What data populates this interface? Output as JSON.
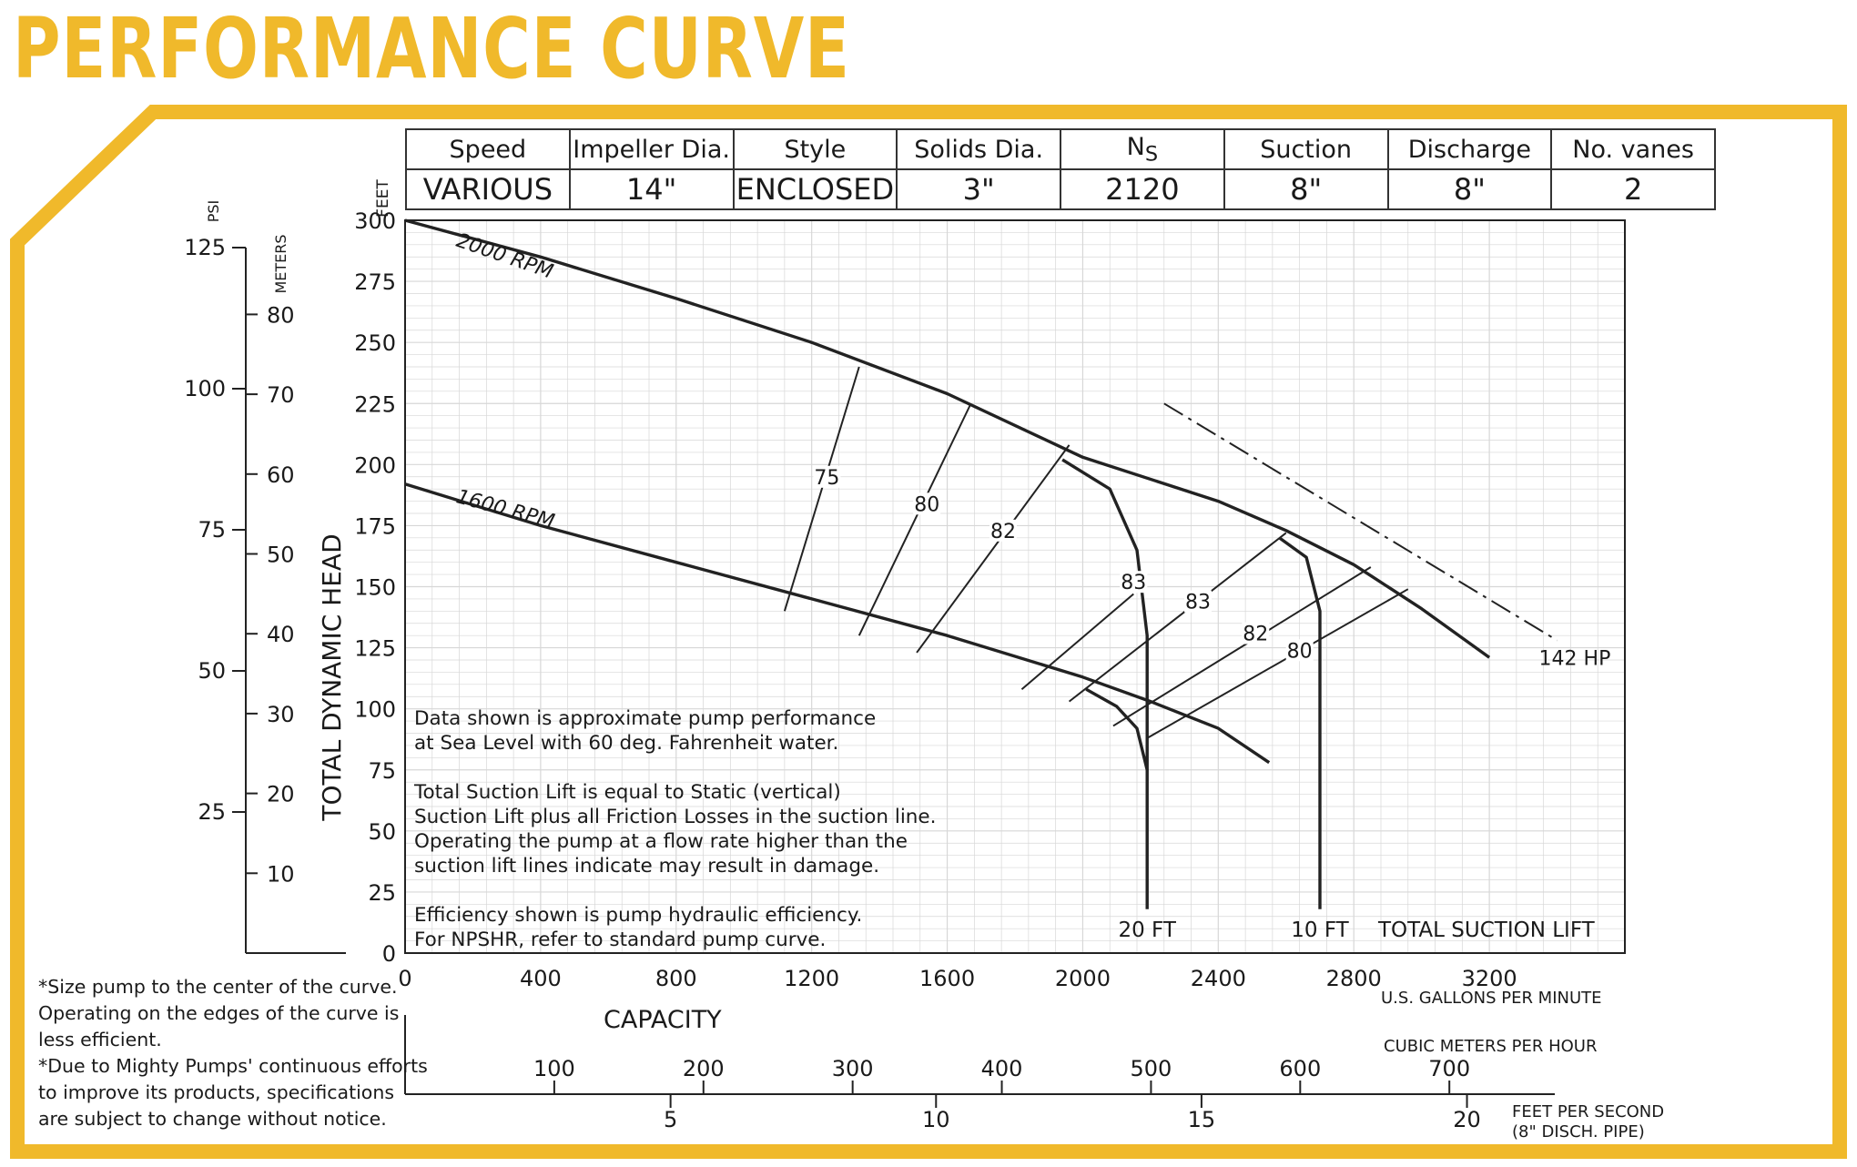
{
  "title": "PERFORMANCE CURVE",
  "colors": {
    "accent": "#f0b92b",
    "ink": "#222222",
    "grid": "#d7d7d7"
  },
  "specs": {
    "headers": [
      "Speed",
      "Impeller Dia.",
      "Style",
      "Solids Dia.",
      "N",
      "Suction",
      "Discharge",
      "No. vanes"
    ],
    "ns_subscript": "S",
    "values": [
      "VARIOUS",
      "14\"",
      "ENCLOSED",
      "3\"",
      "2120",
      "8\"",
      "8\"",
      "2"
    ]
  },
  "notes": {
    "approx": [
      "Data shown is approximate pump performance",
      "at Sea Level with 60 deg. Fahrenheit water."
    ],
    "suction": [
      "Total Suction Lift is equal to Static (vertical)",
      "Suction Lift plus all Friction Losses in the suction line.",
      "Operating the pump at a flow rate higher than the",
      "suction lift lines indicate may result in damage."
    ],
    "efficiency": [
      "Efficiency shown is pump hydraulic efficiency.",
      "For NPSHR, refer to standard pump curve."
    ]
  },
  "footnotes": [
    "*Size pump to the center of the curve.",
    "Operating on the edges of the curve is",
    "less efficient.",
    "*Due to Mighty Pumps' continuous efforts",
    "to improve its products, specifications",
    "are subject to change without notice."
  ],
  "chart_data": {
    "type": "line",
    "title": "",
    "xlabel": "CAPACITY",
    "ylabel": "TOTAL DYNAMIC HEAD",
    "x_unit": "U.S. GALLONS PER MINUTE",
    "y_unit": "FEET",
    "xlim": [
      0,
      3600
    ],
    "ylim": [
      0,
      300
    ],
    "x_ticks": [
      0,
      400,
      800,
      1200,
      1600,
      2000,
      2400,
      2800,
      3200
    ],
    "y_ticks": [
      0,
      25,
      50,
      75,
      100,
      125,
      150,
      175,
      200,
      225,
      250,
      275,
      300
    ],
    "grid": true,
    "secondary_axes": {
      "psi": {
        "label": "PSI",
        "ticks": [
          25,
          50,
          75,
          100,
          125
        ]
      },
      "meters": {
        "label": "METERS",
        "ticks": [
          10,
          20,
          30,
          40,
          50,
          60,
          70,
          80
        ]
      },
      "cubic_meters_per_hour": {
        "label": "CUBIC METERS PER HOUR",
        "ticks": [
          100,
          200,
          300,
          400,
          500,
          600,
          700
        ]
      },
      "feet_per_second": {
        "label": "FEET PER SECOND",
        "sublabel": "(8\" DISCH. PIPE)",
        "ticks": [
          5,
          10,
          15,
          20
        ]
      }
    },
    "series": [
      {
        "name": "2000 RPM",
        "points": [
          [
            0,
            300
          ],
          [
            400,
            285
          ],
          [
            800,
            268
          ],
          [
            1200,
            250
          ],
          [
            1600,
            229
          ],
          [
            2000,
            203
          ],
          [
            2400,
            185
          ],
          [
            2600,
            173
          ],
          [
            2800,
            159
          ],
          [
            3000,
            141
          ],
          [
            3200,
            121
          ]
        ]
      },
      {
        "name": "1600 RPM",
        "points": [
          [
            0,
            192
          ],
          [
            400,
            175
          ],
          [
            800,
            160
          ],
          [
            1200,
            145
          ],
          [
            1600,
            130
          ],
          [
            2000,
            113
          ],
          [
            2200,
            103
          ],
          [
            2400,
            92
          ],
          [
            2550,
            78
          ]
        ]
      }
    ],
    "suction_lift": {
      "label": "TOTAL SUCTION LIFT",
      "curves": [
        {
          "name": "20 FT",
          "points": [
            [
              1940,
              202
            ],
            [
              2080,
              190
            ],
            [
              2160,
              165
            ],
            [
              2190,
              130
            ],
            [
              2190,
              18
            ]
          ]
        },
        {
          "name": "10 FT",
          "points": [
            [
              2580,
              170
            ],
            [
              2660,
              162
            ],
            [
              2700,
              140
            ],
            [
              2700,
              18
            ]
          ]
        },
        {
          "name": "",
          "points": [
            [
              2010,
              108
            ],
            [
              2100,
              101
            ],
            [
              2160,
              92
            ],
            [
              2190,
              75
            ]
          ]
        }
      ]
    },
    "efficiency": [
      {
        "label": "75",
        "line": [
          [
            1120,
            140
          ],
          [
            1340,
            240
          ]
        ],
        "label_at": [
          1245,
          192
        ]
      },
      {
        "label": "80",
        "line": [
          [
            1340,
            130
          ],
          [
            1670,
            225
          ]
        ],
        "label_at": [
          1540,
          181
        ]
      },
      {
        "label": "82",
        "line": [
          [
            1510,
            123
          ],
          [
            1960,
            208
          ]
        ],
        "label_at": [
          1765,
          170
        ]
      },
      {
        "label": "83",
        "line": [
          [
            1820,
            108
          ],
          [
            2150,
            147
          ]
        ],
        "label_at": [
          2150,
          149
        ]
      },
      {
        "label": "83",
        "line": [
          [
            1960,
            103
          ],
          [
            2600,
            172
          ]
        ],
        "label_at": [
          2340,
          141
        ]
      },
      {
        "label": "82",
        "line": [
          [
            2090,
            93
          ],
          [
            2850,
            158
          ]
        ],
        "label_at": [
          2510,
          128
        ]
      },
      {
        "label": "80",
        "line": [
          [
            2190,
            88
          ],
          [
            2960,
            149
          ]
        ],
        "label_at": [
          2640,
          121
        ]
      }
    ],
    "hp_line": {
      "label": "142 HP",
      "points": [
        [
          2240,
          225
        ],
        [
          3400,
          128
        ]
      ]
    }
  }
}
